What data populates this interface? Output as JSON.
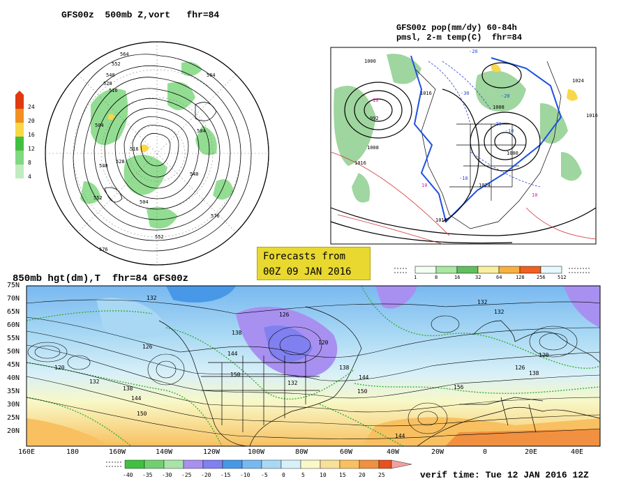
{
  "panels": {
    "polar": {
      "title": "GFS00z  500mb Z,vort   fhr=84",
      "contour_labels": [
        "564",
        "552",
        "540",
        "528",
        "516",
        "504",
        "504",
        "516",
        "528",
        "540",
        "552",
        "564",
        "576",
        "576",
        "540",
        "504",
        "552"
      ],
      "colorbar": {
        "ticks": [
          "24",
          "20",
          "16",
          "12",
          "8",
          "4"
        ],
        "colors": [
          "#e03a10",
          "#f09020",
          "#f8d848",
          "#40c040",
          "#80d880",
          "#c0ecc0"
        ]
      }
    },
    "pop": {
      "title_line1": "GFS00z pop(mm/dy) 60-84h",
      "title_line2": "pmsl, 2-m temp(C)  fhr=84",
      "pressure_labels": [
        "1000",
        "992",
        "1008",
        "1016",
        "1016",
        "1008",
        "1024",
        "1000",
        "1024",
        "1016",
        "1016"
      ],
      "temp_labels": [
        "-20",
        "-30",
        "-20",
        "-20",
        "-10",
        "-10",
        "10",
        "10",
        "10"
      ],
      "colorbar": {
        "ticks": [
          "1",
          "8",
          "16",
          "32",
          "64",
          "128",
          "256",
          "512"
        ],
        "colors": [
          "#f4fff4",
          "#a8e8a0",
          "#60c060",
          "#f8f0a0",
          "#f8b040",
          "#f06020",
          "#e03010",
          "#f0f8ff"
        ]
      }
    },
    "banner": {
      "line1": "Forecasts from",
      "line2": "00Z 09 JAN 2016"
    },
    "main": {
      "title": "850mb hgt(dm),T  fhr=84 GFS00z",
      "lat_labels": [
        "75N",
        "70N",
        "65N",
        "60N",
        "55N",
        "50N",
        "45N",
        "40N",
        "35N",
        "30N",
        "25N",
        "20N"
      ],
      "lon_labels": [
        "160E",
        "180",
        "160W",
        "140W",
        "120W",
        "100W",
        "80W",
        "60W",
        "40W",
        "20W",
        "0",
        "20E",
        "40E"
      ],
      "height_labels": [
        "132",
        "126",
        "120",
        "138",
        "144",
        "150",
        "138",
        "132",
        "120",
        "126",
        "132",
        "138",
        "144",
        "150",
        "156",
        "132",
        "126",
        "120",
        "144",
        "150",
        "138",
        "132",
        "144"
      ],
      "colorbar": {
        "ticks": [
          "-40",
          "-35",
          "-30",
          "-25",
          "-20",
          "-15",
          "-10",
          "-5",
          "0",
          "5",
          "10",
          "15",
          "20",
          "25"
        ],
        "colors": [
          "#40c040",
          "#70d070",
          "#a8e4a8",
          "#a890f0",
          "#8080f0",
          "#4898e8",
          "#78b8f0",
          "#a8d8f4",
          "#d8f0f8",
          "#f8f8c8",
          "#f8e098",
          "#f8c060",
          "#f09040",
          "#e85020",
          "#f0a0a0"
        ]
      }
    },
    "verif": "verif time: Tue 12 JAN 2016 12Z"
  }
}
